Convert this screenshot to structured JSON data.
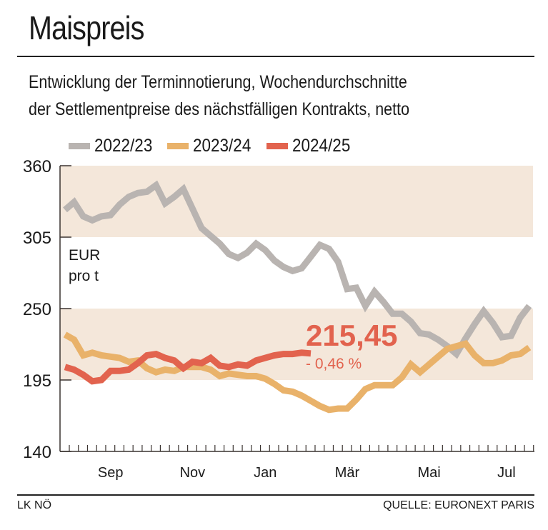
{
  "header": {
    "title": "Maispreis",
    "subtitle_line1": "Entwicklung der Terminnotierung, Wochendurchschnitte",
    "subtitle_line2": "der Settlementpreise des nächstfälligen Kontrakts, netto"
  },
  "footer": {
    "left": "LK NÖ",
    "right": "QUELLE: EURONEXT PARIS"
  },
  "chart_data": {
    "type": "line",
    "title": "Maispreis",
    "ylabel": "EUR pro t",
    "unit_line1": "EUR",
    "unit_line2": "pro t",
    "ylim": [
      140,
      360
    ],
    "yticks": [
      140,
      195,
      250,
      305,
      360
    ],
    "ytick_labels": [
      "140",
      "195",
      "250",
      "305",
      "360"
    ],
    "shaded_bands": [
      [
        305,
        360
      ],
      [
        195,
        250
      ]
    ],
    "band_color": "#f4e7da",
    "weeks": 53,
    "xtick_labels": [
      {
        "label": "Sep",
        "week": 5
      },
      {
        "label": "Nov",
        "week": 14
      },
      {
        "label": "Jan",
        "week": 22
      },
      {
        "label": "Mär",
        "week": 31
      },
      {
        "label": "Mai",
        "week": 40
      },
      {
        "label": "Jul",
        "week": 48.5
      }
    ],
    "legend_position": "top-left",
    "series": [
      {
        "name": "2022/23",
        "color": "#b9b4b1",
        "values": [
          326,
          332,
          321,
          318,
          321,
          322,
          330,
          336,
          339,
          340,
          345,
          331,
          336,
          342,
          327,
          312,
          306,
          300,
          292,
          289,
          293,
          300,
          295,
          287,
          282,
          279,
          281,
          290,
          299,
          296,
          286,
          265,
          266,
          252,
          263,
          255,
          246,
          246,
          240,
          231,
          230,
          226,
          221,
          215,
          227,
          238,
          248,
          239,
          228,
          229,
          243,
          252
        ]
      },
      {
        "name": "2023/24",
        "color": "#e9b26a",
        "values": [
          230,
          226,
          214,
          216,
          214,
          213,
          212,
          209,
          210,
          204,
          201,
          203,
          202,
          205,
          205,
          205,
          203,
          198,
          200,
          199,
          198,
          198,
          196,
          192,
          187,
          186,
          183,
          179,
          175,
          172,
          173,
          173,
          180,
          188,
          191,
          191,
          191,
          197,
          207,
          201,
          207,
          213,
          219,
          221,
          223,
          214,
          208,
          208,
          210,
          214,
          215,
          220
        ]
      },
      {
        "name": "2024/25",
        "color": "#e2634e",
        "values": [
          205,
          203,
          199,
          194,
          195,
          202,
          202,
          203,
          208,
          214,
          215,
          212,
          210,
          204,
          209,
          208,
          212,
          206,
          205,
          207,
          206,
          210,
          212,
          214,
          215,
          215,
          216,
          215.45
        ]
      }
    ],
    "annotation": {
      "value": "215,45",
      "change": "- 0,46 %",
      "color": "#e2634e"
    }
  }
}
